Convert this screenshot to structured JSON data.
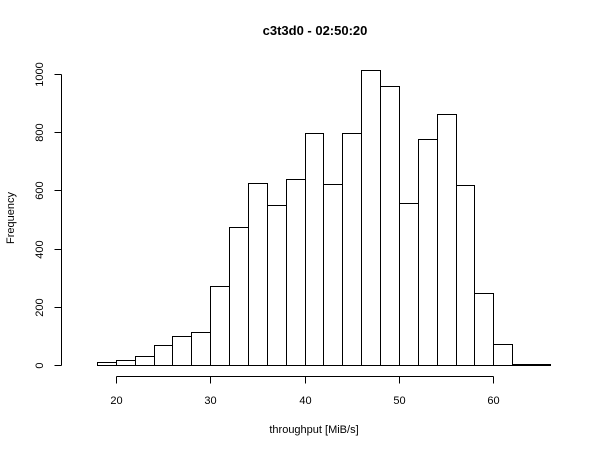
{
  "chart_data": {
    "type": "bar",
    "title": "c3t3d0 - 02:50:20",
    "xlabel": "throughput [MiB/s]",
    "ylabel": "Frequency",
    "bin_width": 2,
    "bins": [
      {
        "start": 16,
        "end": 18,
        "count": 1
      },
      {
        "start": 18,
        "end": 20,
        "count": 10
      },
      {
        "start": 20,
        "end": 22,
        "count": 18
      },
      {
        "start": 22,
        "end": 24,
        "count": 32
      },
      {
        "start": 24,
        "end": 26,
        "count": 70
      },
      {
        "start": 26,
        "end": 28,
        "count": 100
      },
      {
        "start": 28,
        "end": 30,
        "count": 115
      },
      {
        "start": 30,
        "end": 32,
        "count": 272
      },
      {
        "start": 32,
        "end": 34,
        "count": 473
      },
      {
        "start": 34,
        "end": 36,
        "count": 625
      },
      {
        "start": 36,
        "end": 38,
        "count": 548
      },
      {
        "start": 38,
        "end": 40,
        "count": 640
      },
      {
        "start": 40,
        "end": 42,
        "count": 798
      },
      {
        "start": 42,
        "end": 44,
        "count": 620
      },
      {
        "start": 44,
        "end": 46,
        "count": 797
      },
      {
        "start": 46,
        "end": 48,
        "count": 1013
      },
      {
        "start": 48,
        "end": 50,
        "count": 958
      },
      {
        "start": 50,
        "end": 52,
        "count": 556
      },
      {
        "start": 52,
        "end": 54,
        "count": 777
      },
      {
        "start": 54,
        "end": 56,
        "count": 862
      },
      {
        "start": 56,
        "end": 58,
        "count": 617
      },
      {
        "start": 58,
        "end": 60,
        "count": 246
      },
      {
        "start": 60,
        "end": 62,
        "count": 72
      },
      {
        "start": 62,
        "end": 64,
        "count": 5
      },
      {
        "start": 64,
        "end": 66,
        "count": 2
      }
    ],
    "xlim": [
      16,
      66
    ],
    "ylim": [
      0,
      1013
    ],
    "x_ticks": [
      20,
      30,
      40,
      50,
      60
    ],
    "y_ticks": [
      0,
      200,
      400,
      600,
      800,
      1000
    ],
    "grid": false,
    "legend": "none"
  }
}
